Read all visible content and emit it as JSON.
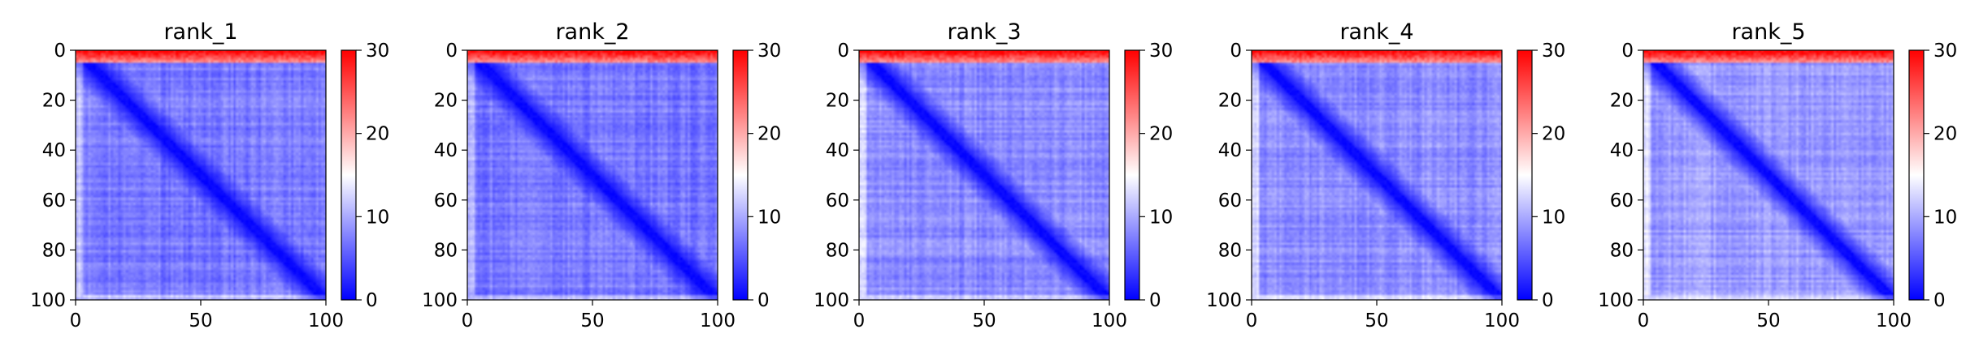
{
  "chart_data": [
    {
      "type": "heatmap",
      "title": "rank_1",
      "x_ticks": [
        "0",
        "50",
        "100"
      ],
      "y_ticks": [
        "0",
        "20",
        "40",
        "60",
        "80",
        "100"
      ],
      "xlim": [
        0,
        100
      ],
      "ylim": [
        100,
        0
      ],
      "colorbar": {
        "ticks": [
          "0",
          "10",
          "20",
          "30"
        ],
        "range": [
          0,
          30
        ],
        "colormap": "bwr"
      },
      "pattern": {
        "size": 100,
        "top_rows_value": 28,
        "diagonal_value": 0,
        "background_value": 4
      }
    },
    {
      "type": "heatmap",
      "title": "rank_2",
      "x_ticks": [
        "0",
        "50",
        "100"
      ],
      "y_ticks": [
        "0",
        "20",
        "40",
        "60",
        "80",
        "100"
      ],
      "xlim": [
        0,
        100
      ],
      "ylim": [
        100,
        0
      ],
      "colorbar": {
        "ticks": [
          "0",
          "10",
          "20",
          "30"
        ],
        "range": [
          0,
          30
        ],
        "colormap": "bwr"
      },
      "pattern": {
        "size": 100,
        "top_rows_value": 28,
        "diagonal_value": 0,
        "background_value": 4
      }
    },
    {
      "type": "heatmap",
      "title": "rank_3",
      "x_ticks": [
        "0",
        "50",
        "100"
      ],
      "y_ticks": [
        "0",
        "20",
        "40",
        "60",
        "80",
        "100"
      ],
      "xlim": [
        0,
        100
      ],
      "ylim": [
        100,
        0
      ],
      "colorbar": {
        "ticks": [
          "0",
          "10",
          "20",
          "30"
        ],
        "range": [
          0,
          30
        ],
        "colormap": "bwr"
      },
      "pattern": {
        "size": 100,
        "top_rows_value": 28,
        "diagonal_value": 0,
        "background_value": 5
      }
    },
    {
      "type": "heatmap",
      "title": "rank_4",
      "x_ticks": [
        "0",
        "50",
        "100"
      ],
      "y_ticks": [
        "0",
        "20",
        "40",
        "60",
        "80",
        "100"
      ],
      "xlim": [
        0,
        100
      ],
      "ylim": [
        100,
        0
      ],
      "colorbar": {
        "ticks": [
          "0",
          "10",
          "20",
          "30"
        ],
        "range": [
          0,
          30
        ],
        "colormap": "bwr"
      },
      "pattern": {
        "size": 100,
        "top_rows_value": 28,
        "diagonal_value": 0,
        "background_value": 5
      }
    },
    {
      "type": "heatmap",
      "title": "rank_5",
      "x_ticks": [
        "0",
        "50",
        "100"
      ],
      "y_ticks": [
        "0",
        "20",
        "40",
        "60",
        "80",
        "100"
      ],
      "xlim": [
        0,
        100
      ],
      "ylim": [
        100,
        0
      ],
      "colorbar": {
        "ticks": [
          "0",
          "10",
          "20",
          "30"
        ],
        "range": [
          0,
          30
        ],
        "colormap": "bwr"
      },
      "pattern": {
        "size": 100,
        "top_rows_value": 28,
        "diagonal_value": 0,
        "background_value": 6
      }
    }
  ]
}
